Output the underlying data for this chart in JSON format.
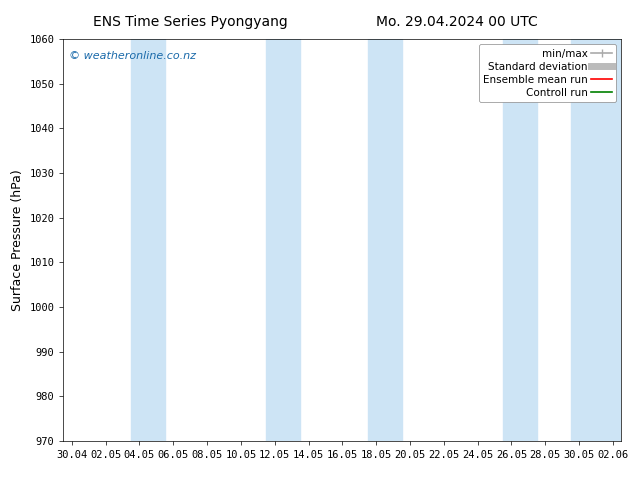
{
  "title_left": "ENS Time Series Pyongyang",
  "title_right": "Mo. 29.04.2024 00 UTC",
  "ylabel": "Surface Pressure (hPa)",
  "ylim": [
    970,
    1060
  ],
  "yticks": [
    970,
    980,
    990,
    1000,
    1010,
    1020,
    1030,
    1040,
    1050,
    1060
  ],
  "xtick_labels": [
    "30.04",
    "02.05",
    "04.05",
    "06.05",
    "08.05",
    "10.05",
    "12.05",
    "14.05",
    "16.05",
    "18.05",
    "20.05",
    "22.05",
    "24.05",
    "26.05",
    "28.05",
    "30.05",
    "02.06"
  ],
  "shaded_band_color": "#cde4f5",
  "shaded_indices": [
    2,
    6,
    9,
    13,
    15,
    16
  ],
  "watermark_text": "© weatheronline.co.nz",
  "watermark_color": "#1a6aaa",
  "legend_items": [
    {
      "label": "min/max",
      "color": "#aaaaaa",
      "lw": 1.2,
      "style": "line_with_caps"
    },
    {
      "label": "Standard deviation",
      "color": "#bbbbbb",
      "lw": 5,
      "style": "line"
    },
    {
      "label": "Ensemble mean run",
      "color": "#ff0000",
      "lw": 1.2,
      "style": "line"
    },
    {
      "label": "Controll run",
      "color": "#008000",
      "lw": 1.2,
      "style": "line"
    }
  ],
  "background_color": "#ffffff",
  "plot_bg_color": "#ffffff",
  "title_fontsize": 10,
  "axis_label_fontsize": 9,
  "tick_fontsize": 7.5,
  "watermark_fontsize": 8,
  "legend_fontsize": 7.5
}
